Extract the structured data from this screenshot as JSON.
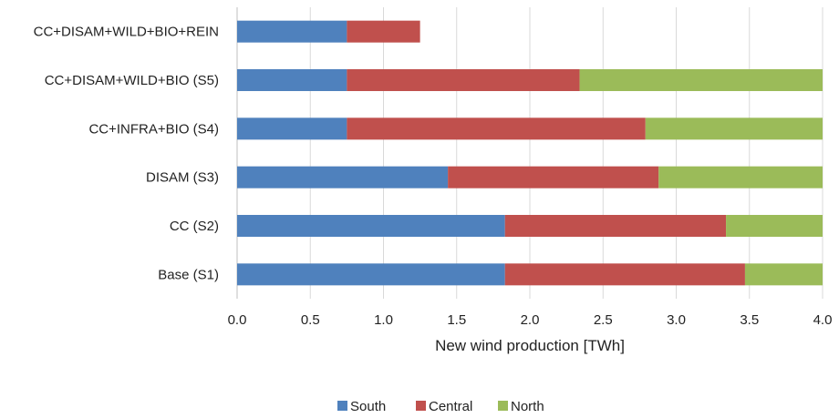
{
  "chart_data": {
    "type": "bar",
    "orientation": "horizontal",
    "stacked": true,
    "categories": [
      "CC+DISAM+WILD+BIO+REIN",
      "CC+DISAM+WILD+BIO (S5)",
      "CC+INFRA+BIO (S4)",
      "DISAM (S3)",
      "CC (S2)",
      "Base (S1)"
    ],
    "series": [
      {
        "name": "South",
        "color": "#4f81bd",
        "values": [
          0.75,
          0.75,
          0.75,
          1.44,
          1.83,
          1.83
        ]
      },
      {
        "name": "Central",
        "color": "#c0504d",
        "values": [
          0.5,
          1.59,
          2.04,
          1.44,
          1.51,
          1.64
        ]
      },
      {
        "name": "North",
        "color": "#9bbb59",
        "values": [
          0.0,
          1.66,
          1.21,
          1.12,
          0.66,
          0.53
        ]
      }
    ],
    "xlabel": "New wind production [TWh]",
    "ylabel": "",
    "title": "",
    "xlim": [
      0,
      4.0
    ],
    "xticks": [
      "0.0",
      "0.5",
      "1.0",
      "1.5",
      "2.0",
      "2.5",
      "3.0",
      "3.5",
      "4.0"
    ],
    "grid": true,
    "legend_position": "bottom-center"
  }
}
